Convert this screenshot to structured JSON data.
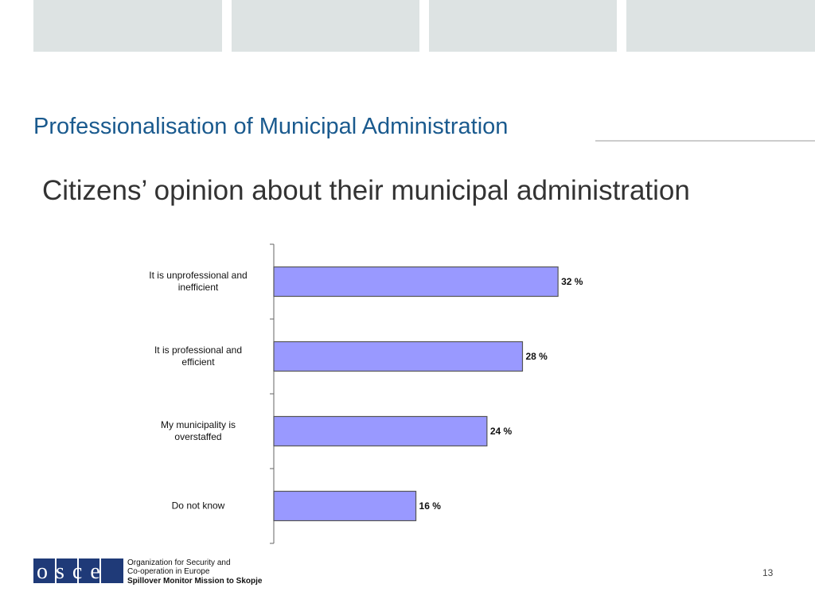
{
  "slide_title": "Professionalisation of Municipal Administration",
  "footer": {
    "logo": "osce",
    "org_line1": "Organization for Security and",
    "org_line2": "Co-operation in Europe",
    "org_line3": "Spillover Monitor Mission to Skopje",
    "page_number": "13"
  },
  "chart_data": {
    "type": "bar",
    "orientation": "horizontal",
    "title": "Citizens’ opinion about their municipal administration",
    "categories": [
      "It is unprofessional and\ninefficient",
      "It is professional and\nefficient",
      "My municipality is\noverstaffed",
      "Do not know"
    ],
    "values": [
      32,
      28,
      24,
      16
    ],
    "value_labels": [
      "32 %",
      "28 %",
      "24 %",
      "16 %"
    ],
    "color": "#9999ff"
  }
}
